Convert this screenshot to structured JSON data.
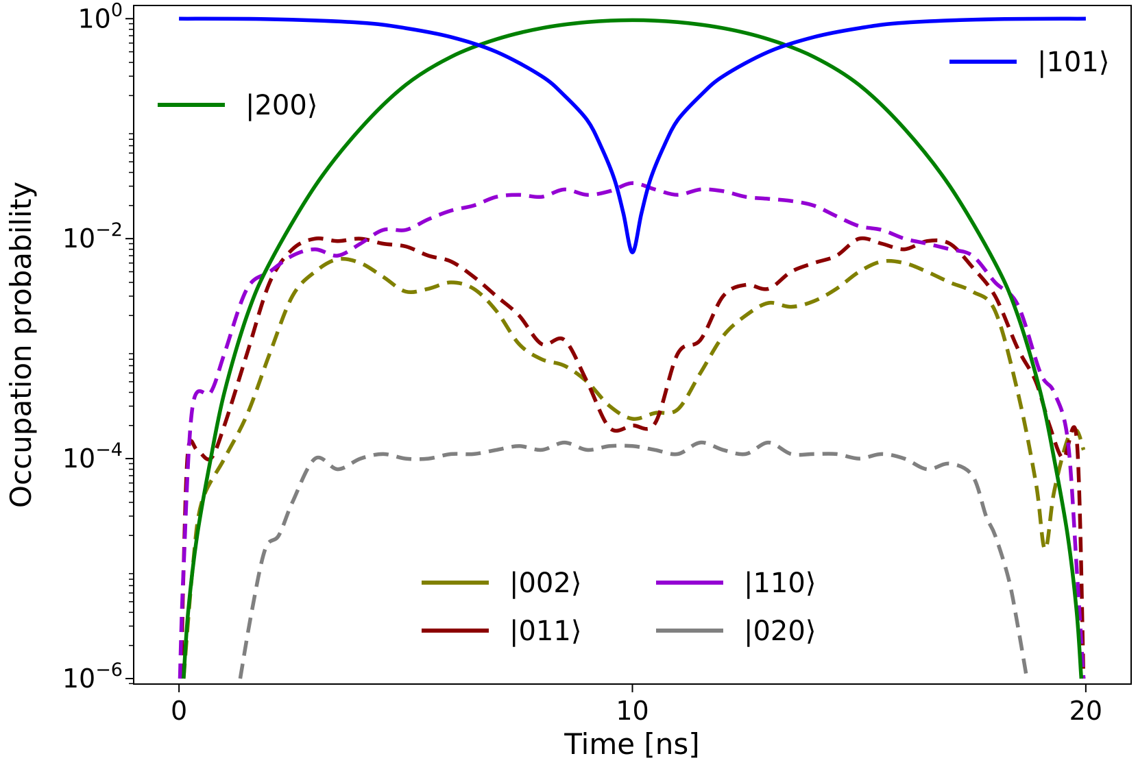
{
  "chart_data": {
    "type": "line",
    "xlabel": "Time [ns]",
    "ylabel": "Occupation probability",
    "xscale": "linear",
    "yscale": "log",
    "xlim": [
      -1,
      21
    ],
    "ylim_exp": [
      -6.05,
      0.12
    ],
    "x_ticks": [
      {
        "value": 0,
        "label": "0"
      },
      {
        "value": 10,
        "label": "10"
      },
      {
        "value": 20,
        "label": "20"
      }
    ],
    "y_ticks": [
      {
        "exp": 0,
        "base": "10",
        "sup": "0"
      },
      {
        "exp": -2,
        "base": "10",
        "sup": "−2"
      },
      {
        "exp": -4,
        "base": "10",
        "sup": "−4"
      },
      {
        "exp": -6,
        "base": "10",
        "sup": "−6"
      }
    ],
    "legends": [
      {
        "position": "top-right",
        "series": [
          "|101⟩"
        ]
      },
      {
        "position": "upper-left",
        "series": [
          "|200⟩"
        ]
      },
      {
        "position": "lower-center",
        "columns": 2,
        "series": [
          "|002⟩",
          "|011⟩",
          "|110⟩",
          "|020⟩"
        ]
      }
    ],
    "series": [
      {
        "name": "|101⟩",
        "label": "|101⟩",
        "color": "#0000ff",
        "style": "solid",
        "x": [
          0,
          2,
          4,
          5,
          6,
          7,
          8,
          8.5,
          9,
          9.3,
          9.6,
          9.8,
          10,
          10.2,
          10.4,
          10.7,
          11,
          11.5,
          12,
          13,
          14,
          15,
          16,
          18,
          20
        ],
        "y": [
          1.0,
          0.99,
          0.92,
          0.82,
          0.68,
          0.5,
          0.3,
          0.2,
          0.12,
          0.07,
          0.035,
          0.017,
          0.0075,
          0.017,
          0.035,
          0.07,
          0.12,
          0.2,
          0.3,
          0.5,
          0.68,
          0.82,
          0.92,
          0.99,
          1.0
        ]
      },
      {
        "name": "|200⟩",
        "label": "|200⟩",
        "color": "#008000",
        "style": "solid",
        "x": [
          0.1,
          0.2,
          0.4,
          0.7,
          1.0,
          1.5,
          2,
          3,
          4,
          5,
          6,
          7,
          8,
          9,
          10,
          11,
          12,
          13,
          14,
          15,
          16,
          17,
          18,
          18.5,
          19,
          19.3,
          19.6,
          19.8,
          19.9
        ],
        "y": [
          1e-06,
          4e-06,
          2e-05,
          0.0001,
          0.0004,
          0.002,
          0.006,
          0.03,
          0.1,
          0.25,
          0.45,
          0.65,
          0.82,
          0.93,
          0.97,
          0.93,
          0.82,
          0.65,
          0.45,
          0.25,
          0.1,
          0.03,
          0.006,
          0.002,
          0.0004,
          0.0001,
          2e-05,
          4e-06,
          1e-06
        ]
      },
      {
        "name": "|002⟩",
        "label": "|002⟩",
        "color": "#808000",
        "style": "dashed",
        "x": [
          0.1,
          0.3,
          0.5,
          1,
          1.5,
          2,
          2.5,
          3,
          3.5,
          4,
          4.5,
          5,
          5.5,
          6,
          6.5,
          7,
          7.5,
          8,
          8.5,
          9,
          9.5,
          10,
          10.5,
          11,
          11.5,
          12,
          12.5,
          13,
          13.5,
          14,
          14.5,
          15,
          15.5,
          16,
          16.5,
          17,
          17.5,
          18,
          18.5,
          18.9,
          19.1,
          19.3,
          19.6,
          19.8,
          19.95
        ],
        "y": [
          1e-06,
          1e-05,
          4e-05,
          0.0001,
          0.00025,
          0.0009,
          0.003,
          0.005,
          0.0065,
          0.006,
          0.0045,
          0.0033,
          0.0035,
          0.004,
          0.0035,
          0.0022,
          0.0011,
          0.0008,
          0.0007,
          0.0005,
          0.0003,
          0.00023,
          0.00026,
          0.00028,
          0.0006,
          0.0013,
          0.002,
          0.0026,
          0.0024,
          0.0027,
          0.0035,
          0.005,
          0.0062,
          0.006,
          0.005,
          0.004,
          0.0033,
          0.0022,
          0.0004,
          6e-05,
          1.5e-05,
          5e-05,
          0.00015,
          0.00018,
          0.00012
        ]
      },
      {
        "name": "|011⟩",
        "label": "|011⟩",
        "color": "#8b0000",
        "style": "dashed",
        "x": [
          0.05,
          0.1,
          0.2,
          0.4,
          0.7,
          1,
          1.5,
          2,
          2.5,
          3,
          3.5,
          4,
          4.5,
          5,
          5.5,
          6,
          6.5,
          7,
          7.5,
          8,
          8.5,
          9,
          9.5,
          10,
          10.5,
          11,
          11.5,
          12,
          12.5,
          13,
          13.5,
          14,
          14.5,
          15,
          15.5,
          16,
          16.5,
          17,
          17.5,
          18,
          18.5,
          18.9,
          19.2,
          19.5,
          19.8,
          19.95
        ],
        "y": [
          1e-06,
          1e-05,
          0.00012,
          0.00012,
          0.0001,
          0.0002,
          0.0009,
          0.004,
          0.008,
          0.01,
          0.0095,
          0.01,
          0.009,
          0.0085,
          0.007,
          0.0062,
          0.0045,
          0.003,
          0.002,
          0.0011,
          0.0012,
          0.0005,
          0.00019,
          0.0002,
          0.00021,
          0.0009,
          0.0012,
          0.003,
          0.0038,
          0.0035,
          0.005,
          0.006,
          0.007,
          0.01,
          0.009,
          0.008,
          0.0095,
          0.009,
          0.0055,
          0.003,
          0.001,
          0.0005,
          0.0002,
          0.0001,
          0.00015,
          1e-06
        ]
      },
      {
        "name": "|110⟩",
        "label": "|110⟩",
        "color": "#9400d3",
        "style": "dashed",
        "x": [
          0.02,
          0.1,
          0.3,
          0.7,
          1,
          1.5,
          2,
          2.5,
          3,
          3.5,
          4,
          4.5,
          5,
          5.5,
          6,
          6.5,
          7,
          7.5,
          8,
          8.5,
          9,
          9.5,
          10,
          10.5,
          11,
          11.5,
          12,
          12.5,
          13,
          13.5,
          14,
          14.5,
          15,
          15.5,
          16,
          16.5,
          17,
          17.5,
          18,
          18.5,
          19,
          19.3,
          19.6,
          19.8,
          19.95
        ],
        "y": [
          1e-06,
          1e-05,
          0.0003,
          0.0004,
          0.0009,
          0.0035,
          0.005,
          0.007,
          0.008,
          0.007,
          0.009,
          0.012,
          0.012,
          0.015,
          0.018,
          0.02,
          0.024,
          0.025,
          0.024,
          0.028,
          0.025,
          0.027,
          0.032,
          0.028,
          0.025,
          0.028,
          0.027,
          0.024,
          0.023,
          0.022,
          0.02,
          0.016,
          0.013,
          0.012,
          0.01,
          0.009,
          0.008,
          0.007,
          0.004,
          0.0025,
          0.0006,
          0.0004,
          0.00015,
          1e-05,
          1e-06
        ]
      },
      {
        "name": "|020⟩",
        "label": "|020⟩",
        "color": "#808080",
        "style": "dashed",
        "x": [
          1.35,
          1.6,
          1.9,
          2.2,
          2.5,
          3,
          3.5,
          4,
          4.5,
          5,
          5.5,
          6,
          6.5,
          7,
          7.5,
          8,
          8.5,
          9,
          9.5,
          10,
          10.5,
          11,
          11.5,
          12,
          12.5,
          13,
          13.5,
          14,
          14.5,
          15,
          15.5,
          16,
          16.5,
          17,
          17.5,
          17.8,
          18,
          18.3,
          18.5,
          18.7
        ],
        "y": [
          1e-06,
          4e-06,
          1.5e-05,
          2e-05,
          4e-05,
          0.0001,
          8e-05,
          0.0001,
          0.00011,
          0.0001,
          0.0001,
          0.00011,
          0.00011,
          0.00012,
          0.00013,
          0.00012,
          0.00014,
          0.00012,
          0.00013,
          0.00013,
          0.00012,
          0.00011,
          0.00014,
          0.00012,
          0.00011,
          0.00014,
          0.00011,
          0.00011,
          0.00011,
          0.0001,
          0.00011,
          0.0001,
          8e-05,
          9e-05,
          7e-05,
          3e-05,
          2e-05,
          8e-06,
          3e-06,
          1e-06
        ]
      }
    ]
  }
}
